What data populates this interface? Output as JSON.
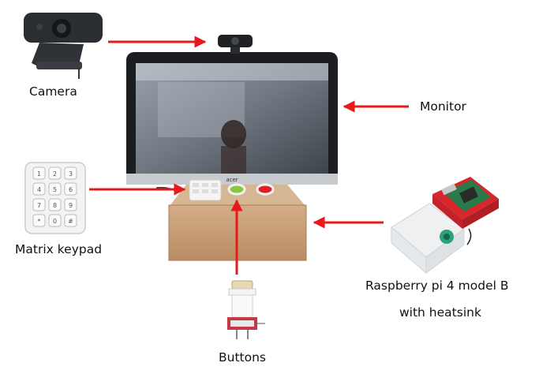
{
  "labels": {
    "camera": "Camera",
    "monitor": "Monitor",
    "keypad": "Matrix keypad",
    "rpi_line1": "Raspberry pi 4 model B",
    "rpi_line2": "with heatsink",
    "buttons": "Buttons"
  },
  "monitor_brand": "acer",
  "keypad_keys": [
    "1",
    "2",
    "3",
    "4",
    "5",
    "6",
    "7",
    "8",
    "9",
    "*",
    "0",
    "#"
  ],
  "colors": {
    "arrow": "#e8191c",
    "box": "#c9a07a",
    "button_green": "#8cc63f",
    "button_red": "#e02020",
    "case_red": "#d8262d",
    "case_white": "#eef0f2"
  }
}
